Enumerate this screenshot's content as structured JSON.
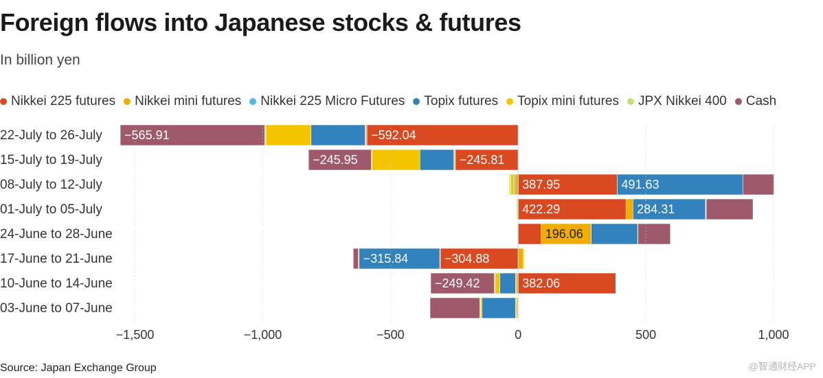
{
  "chart_data": {
    "type": "bar",
    "orientation": "horizontal",
    "stacked": true,
    "title": "Foreign flows into Japanese stocks & futures",
    "subtitle": "In billion yen",
    "xlabel": "",
    "ylabel": "",
    "xlim": [
      -1550,
      1000
    ],
    "xticks": [
      -1500,
      -1000,
      -500,
      0,
      500,
      1000
    ],
    "xtick_labels": [
      "−1,500",
      "−1,000",
      "−500",
      "0",
      "500",
      "1,000"
    ],
    "grid": true,
    "legend_position": "top",
    "categories": [
      "22-July to 26-July",
      "15-July to 19-July",
      "08-July to 12-July",
      "01-July to 05-July",
      "24-June to 28-June",
      "17-June to 21-June",
      "10-June to 14-June",
      "03-June to 07-June"
    ],
    "series": [
      {
        "name": "Nikkei 225 futures",
        "color": "#d9481f",
        "values": [
          -592.04,
          -245.81,
          387.95,
          422.29,
          90,
          -304.88,
          382.06,
          -3
        ]
      },
      {
        "name": "Nikkei mini futures",
        "color": "#f0ad00",
        "values": [
          -5,
          -3,
          -12,
          27,
          196.06,
          20,
          -8,
          -5
        ]
      },
      {
        "name": "Nikkei 225 Micro Futures",
        "color": "#52b8e8",
        "values": [
          -2,
          -3,
          -5,
          -3,
          -2,
          -2,
          -2,
          -2
        ]
      },
      {
        "name": "Topix futures",
        "color": "#3182bd",
        "values": [
          -212,
          -133,
          491.63,
          284.31,
          182,
          -315.84,
          -62,
          -132
        ]
      },
      {
        "name": "Topix mini futures",
        "color": "#f5c400",
        "values": [
          -177,
          -187,
          -12,
          3,
          1,
          3,
          -18,
          -5
        ]
      },
      {
        "name": "JPX Nikkei 400",
        "color": "#bfe07a",
        "values": [
          -4,
          -3,
          -6,
          -4,
          -2,
          -3,
          -3,
          -3
        ]
      },
      {
        "name": "Cash",
        "color": "#9e5a6b",
        "values": [
          -565.91,
          -245.95,
          122,
          183,
          127,
          -20,
          -249.42,
          -195
        ]
      }
    ],
    "data_labels": [
      {
        "category": "22-July to 26-July",
        "series": "Cash",
        "text": "−565.91"
      },
      {
        "category": "22-July to 26-July",
        "series": "Nikkei 225 futures",
        "text": "−592.04"
      },
      {
        "category": "15-July to 19-July",
        "series": "Cash",
        "text": "−245.95"
      },
      {
        "category": "15-July to 19-July",
        "series": "Nikkei 225 futures",
        "text": "−245.81"
      },
      {
        "category": "08-July to 12-July",
        "series": "Nikkei 225 futures",
        "text": "387.95"
      },
      {
        "category": "08-July to 12-July",
        "series": "Topix futures",
        "text": "491.63"
      },
      {
        "category": "01-July to 05-July",
        "series": "Nikkei 225 futures",
        "text": "422.29"
      },
      {
        "category": "01-July to 05-July",
        "series": "Topix futures",
        "text": "284.31"
      },
      {
        "category": "24-June to 28-June",
        "series": "Nikkei mini futures",
        "text": "196.06"
      },
      {
        "category": "17-June to 21-June",
        "series": "Topix futures",
        "text": "−315.84"
      },
      {
        "category": "17-June to 21-June",
        "series": "Nikkei 225 futures",
        "text": "−304.88"
      },
      {
        "category": "10-June to 14-June",
        "series": "Cash",
        "text": "−249.42"
      },
      {
        "category": "10-June to 14-June",
        "series": "Nikkei 225 futures",
        "text": "382.06"
      }
    ]
  },
  "source": "Source: Japan Exchange Group",
  "watermark": "@智通财经APP"
}
